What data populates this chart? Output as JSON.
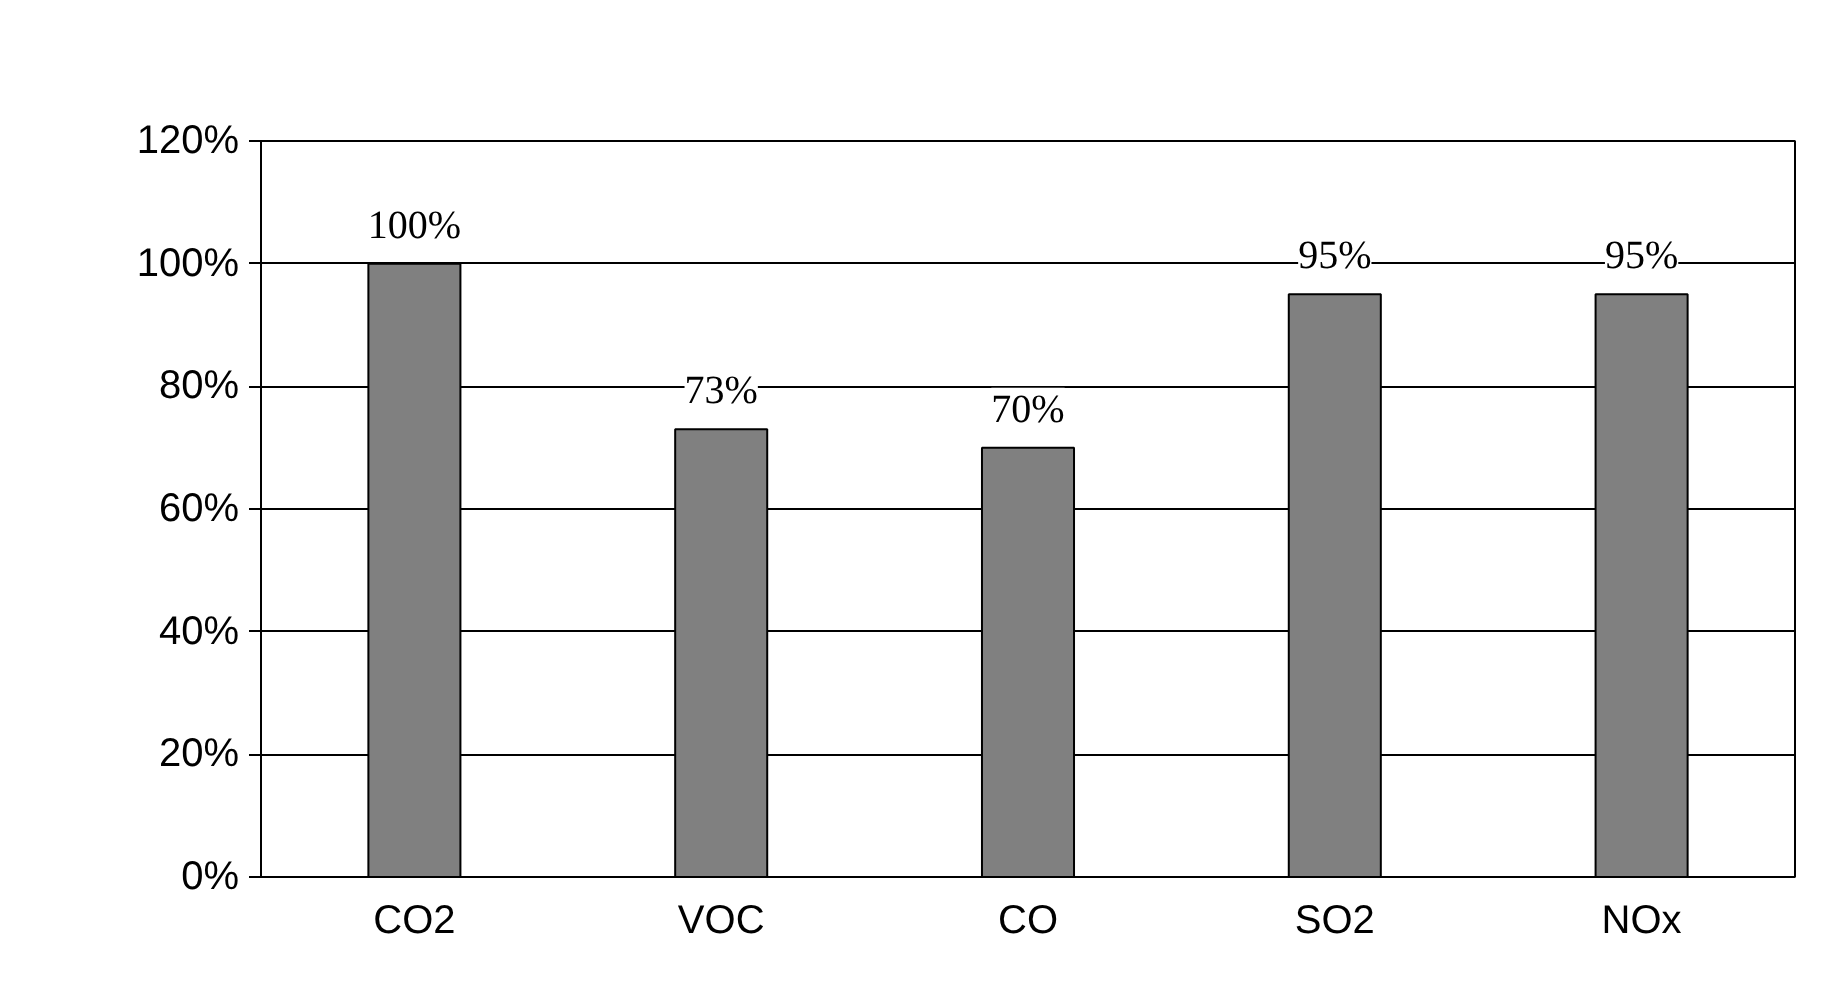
{
  "chart_data": {
    "type": "bar",
    "categories": [
      "CO2",
      "VOC",
      "CO",
      "SO2",
      "NOx"
    ],
    "values": [
      100,
      73,
      70,
      95,
      95
    ],
    "value_labels": [
      "100%",
      "73%",
      "70%",
      "95%",
      "95%"
    ],
    "color": "#808080",
    "ylim": [
      0,
      120
    ],
    "yticks": [
      {
        "value": 0,
        "label": "0%"
      },
      {
        "value": 20,
        "label": "20%"
      },
      {
        "value": 40,
        "label": "40%"
      },
      {
        "value": 60,
        "label": "60%"
      },
      {
        "value": 80,
        "label": "80%"
      },
      {
        "value": 100,
        "label": "100%"
      },
      {
        "value": 120,
        "label": "120%"
      }
    ],
    "grid": "y"
  }
}
